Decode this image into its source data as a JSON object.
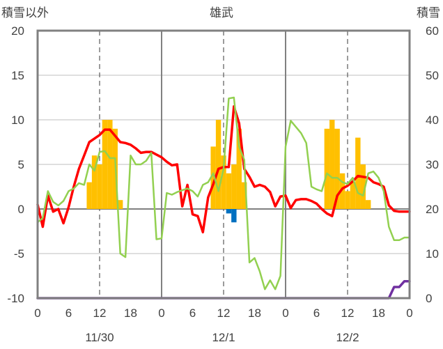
{
  "chart_data": {
    "type": "line",
    "title": "雄武",
    "left_axis_label": "積雪以外",
    "right_axis_label": "積雪",
    "left_ylim": [
      -10,
      20
    ],
    "right_ylim": [
      0,
      60
    ],
    "left_yticks": [
      "20",
      "15",
      "10",
      "5",
      "0",
      "-5",
      "-10"
    ],
    "right_yticks": [
      "60",
      "50",
      "40",
      "30",
      "20",
      "10",
      "0"
    ],
    "xlim": [
      0,
      72
    ],
    "x_tick_positions": [
      0,
      6,
      12,
      18,
      24,
      30,
      36,
      42,
      48,
      54,
      60,
      66,
      72
    ],
    "x_tick_labels": [
      "0",
      "6",
      "12",
      "18",
      "0",
      "6",
      "12",
      "18",
      "0",
      "6",
      "12",
      "18",
      "0"
    ],
    "day_labels": [
      {
        "x": 12,
        "text": "11/30"
      },
      {
        "x": 36,
        "text": "12/1"
      },
      {
        "x": 60,
        "text": "12/2"
      }
    ],
    "grid": "dashed vertical lines at 12h, solid vertical day separators",
    "series": [
      {
        "role": "precip_positive",
        "style": "bar",
        "color": "#ffc000",
        "x": [
          10,
          11,
          12,
          13,
          14,
          15,
          16,
          34,
          35,
          36,
          37,
          38,
          39,
          40,
          56,
          57,
          58,
          59,
          60,
          61,
          62,
          63,
          64
        ],
        "values": [
          3,
          6,
          5,
          10,
          10,
          9,
          1,
          7,
          10,
          6,
          4,
          5,
          9,
          3,
          9,
          10,
          9,
          4,
          2,
          3,
          8,
          5,
          1
        ]
      },
      {
        "role": "precip_negative",
        "style": "bar",
        "color": "#0070c0",
        "x": [
          37,
          38
        ],
        "values": [
          -0.5,
          -1.5
        ]
      },
      {
        "role": "temperature",
        "style": "line",
        "color": "#ff0000",
        "width": 3.5,
        "x": [
          0,
          1,
          2,
          3,
          4,
          5,
          6,
          7,
          8,
          9,
          10,
          11,
          12,
          13,
          14,
          15,
          16,
          17,
          18,
          19,
          20,
          21,
          22,
          23,
          24,
          25,
          26,
          27,
          28,
          29,
          30,
          31,
          32,
          33,
          34,
          35,
          36,
          37,
          38,
          39,
          40,
          41,
          42,
          43,
          44,
          45,
          46,
          47,
          48,
          49,
          50,
          51,
          52,
          53,
          54,
          55,
          56,
          57,
          58,
          59,
          60,
          61,
          62,
          63,
          64,
          65,
          66,
          67,
          68,
          69,
          70,
          71,
          72
        ],
        "values": [
          0.5,
          -2,
          1.5,
          -0.3,
          0,
          -1.6,
          0.2,
          2.5,
          4.5,
          6,
          7.5,
          7.9,
          8.3,
          8.9,
          8.9,
          8.2,
          7.5,
          7.4,
          7.2,
          6.8,
          6.3,
          6.4,
          6.4,
          6.1,
          5.8,
          5.3,
          4.9,
          5,
          0.3,
          2.7,
          -0.6,
          -0.8,
          -2.6,
          1.3,
          2.8,
          4.5,
          4.7,
          4.7,
          11.5,
          9.6,
          4.5,
          3.6,
          2.5,
          2.7,
          2.5,
          1.9,
          0.3,
          1.4,
          1.5,
          0.1,
          1,
          1.1,
          1.1,
          0.9,
          0.6,
          0,
          -0.5,
          -0.8,
          1.5,
          2.3,
          2.6,
          3.1,
          3.7,
          3.6,
          3.5,
          3,
          2.8,
          2.5,
          0.4,
          -0.2,
          -0.3,
          -0.3,
          -0.3
        ]
      },
      {
        "role": "secondary",
        "style": "line",
        "color": "#92d050",
        "width": 2.5,
        "x": [
          0,
          1,
          2,
          3,
          4,
          5,
          6,
          7,
          8,
          9,
          10,
          11,
          12,
          13,
          14,
          15,
          16,
          17,
          18,
          19,
          20,
          21,
          22,
          23,
          24,
          25,
          26,
          27,
          28,
          29,
          30,
          31,
          32,
          33,
          34,
          35,
          36,
          37,
          38,
          39,
          40,
          41,
          42,
          43,
          44,
          45,
          46,
          47,
          48,
          49,
          50,
          51,
          52,
          53,
          54,
          55,
          56,
          57,
          58,
          59,
          60,
          61,
          62,
          63,
          64,
          65,
          66,
          67,
          68,
          69,
          70,
          71,
          72
        ],
        "values": [
          -1.5,
          -1,
          2,
          0.8,
          0.4,
          0.9,
          2,
          2.3,
          2.9,
          2.7,
          5,
          4.3,
          6.4,
          6.5,
          5.7,
          5.7,
          -5,
          -5.4,
          6,
          5,
          5,
          5.4,
          6.3,
          -3.4,
          -3.3,
          1.8,
          1.6,
          1.9,
          2.1,
          2.3,
          2,
          1.4,
          2.7,
          3,
          4,
          2,
          4.5,
          12.4,
          12.5,
          7,
          5.5,
          -6,
          -5.5,
          -7,
          -9,
          -8,
          -9,
          -7.5,
          7,
          9.9,
          9.2,
          8.5,
          7.4,
          2.5,
          2.2,
          2,
          4,
          3.5,
          3.5,
          3,
          2.8,
          3.5,
          1.8,
          1.5,
          4,
          4.2,
          3.5,
          2,
          -2,
          -3.5,
          -3.5,
          -3.2,
          -3.2
        ]
      },
      {
        "role": "snow_depth",
        "style": "line",
        "axis": "right",
        "color": "#7030a0",
        "width": 3.5,
        "x": [
          0,
          68,
          69,
          70,
          71,
          72
        ],
        "values": [
          0,
          0,
          2.5,
          2.5,
          3.8,
          3.8
        ]
      }
    ]
  }
}
